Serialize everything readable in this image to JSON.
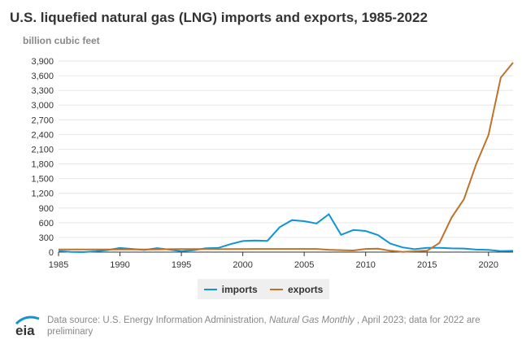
{
  "chart_data": {
    "type": "line",
    "title": "U.S. liquefied natural gas (LNG) imports and exports, 1985-2022",
    "ylabel": "billion cubic feet",
    "ylim": [
      0,
      3900
    ],
    "yticks": [
      "0",
      "300",
      "600",
      "900",
      "1,200",
      "1,500",
      "1,800",
      "2,100",
      "2,400",
      "2,700",
      "3,000",
      "3,300",
      "3,600",
      "3,900"
    ],
    "xticks": [
      "1985",
      "1990",
      "1995",
      "2000",
      "2005",
      "2010",
      "2015",
      "2020"
    ],
    "grid": true,
    "legend": "bottom",
    "x": [
      1985,
      1986,
      1987,
      1988,
      1989,
      1990,
      1991,
      1992,
      1993,
      1994,
      1995,
      1996,
      1997,
      1998,
      1999,
      2000,
      2001,
      2002,
      2003,
      2004,
      2005,
      2006,
      2007,
      2008,
      2009,
      2010,
      2011,
      2012,
      2013,
      2014,
      2015,
      2016,
      2017,
      2018,
      2019,
      2020,
      2021,
      2022
    ],
    "series": [
      {
        "name": "imports",
        "color": "#0f95d6",
        "values": [
          24,
          3,
          0,
          17,
          42,
          84,
          64,
          43,
          82,
          51,
          18,
          40,
          78,
          85,
          163,
          226,
          238,
          229,
          507,
          652,
          631,
          584,
          771,
          352,
          452,
          431,
          349,
          175,
          97,
          59,
          88,
          88,
          77,
          73,
          51,
          44,
          22,
          27
        ]
      },
      {
        "name": "exports",
        "color": "#bd732a",
        "values": [
          55,
          55,
          55,
          55,
          55,
          55,
          55,
          55,
          55,
          60,
          62,
          62,
          62,
          60,
          62,
          63,
          65,
          65,
          65,
          65,
          65,
          65,
          48,
          39,
          33,
          65,
          70,
          28,
          5,
          16,
          28,
          186,
          707,
          1081,
          1798,
          2390,
          3561,
          3866
        ]
      }
    ]
  },
  "source": {
    "prefix": "Data source: U.S. Energy Information Administration, ",
    "italic": "Natural Gas Monthly",
    "suffix": " , April 2023; data for 2022 are preliminary"
  },
  "logo": "eia"
}
